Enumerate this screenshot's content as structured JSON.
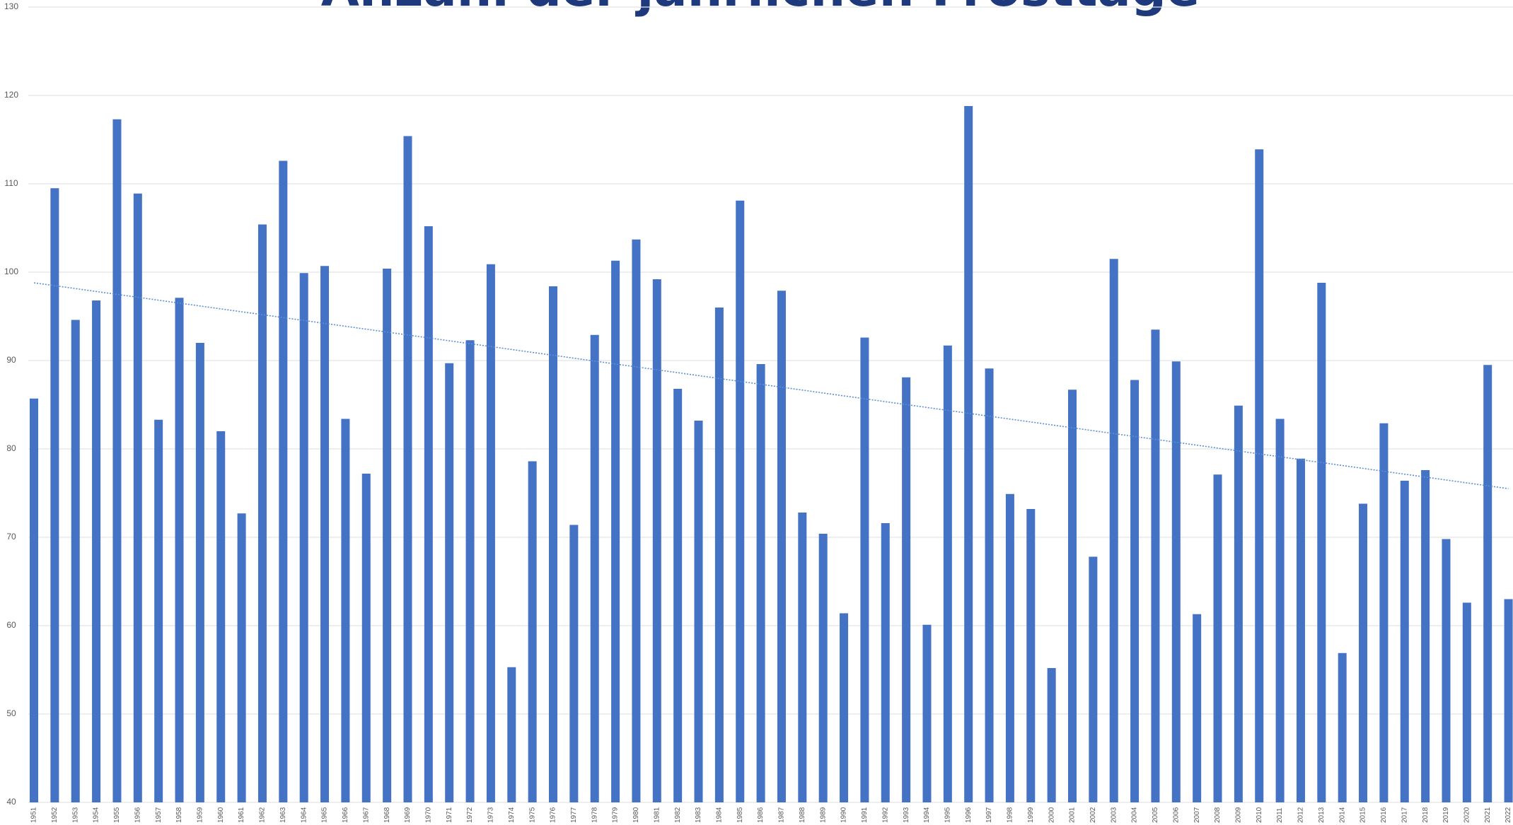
{
  "chart_data": {
    "type": "bar",
    "title": "Anzahl der jährlichen Frosttage",
    "categories": [
      "1951",
      "1952",
      "1953",
      "1954",
      "1955",
      "1956",
      "1957",
      "1958",
      "1959",
      "1960",
      "1961",
      "1962",
      "1963",
      "1964",
      "1965",
      "1966",
      "1967",
      "1968",
      "1969",
      "1970",
      "1971",
      "1972",
      "1973",
      "1974",
      "1975",
      "1976",
      "1977",
      "1978",
      "1979",
      "1980",
      "1981",
      "1982",
      "1983",
      "1984",
      "1985",
      "1986",
      "1987",
      "1988",
      "1989",
      "1990",
      "1991",
      "1992",
      "1993",
      "1994",
      "1995",
      "1996",
      "1997",
      "1998",
      "1999",
      "2000",
      "2001",
      "2002",
      "2003",
      "2004",
      "2005",
      "2006",
      "2007",
      "2008",
      "2009",
      "2010",
      "2011",
      "2012",
      "2013",
      "2014",
      "2015",
      "2016",
      "2017",
      "2018",
      "2019",
      "2020",
      "2021",
      "2022"
    ],
    "values": [
      85.7,
      109.5,
      94.6,
      96.8,
      117.3,
      108.9,
      83.3,
      97.1,
      92.0,
      82.0,
      72.7,
      105.4,
      112.6,
      99.9,
      100.7,
      83.4,
      77.2,
      100.4,
      115.4,
      105.2,
      89.7,
      92.3,
      100.9,
      55.3,
      78.6,
      98.4,
      71.4,
      92.9,
      101.3,
      103.7,
      99.2,
      86.8,
      83.2,
      96.0,
      108.1,
      89.6,
      97.9,
      72.8,
      70.4,
      61.4,
      92.6,
      71.6,
      88.1,
      60.1,
      91.7,
      118.8,
      89.1,
      74.9,
      73.2,
      55.2,
      86.7,
      67.8,
      101.5,
      87.8,
      93.5,
      89.9,
      61.3,
      77.1,
      84.9,
      113.9,
      83.4,
      78.9,
      98.8,
      56.9,
      73.8,
      82.9,
      76.4,
      77.6,
      69.8,
      62.6,
      89.5,
      63.0
    ],
    "color": "#4472c4",
    "trend": [
      98.8,
      75.5
    ],
    "trend_color": "#5b8fd8",
    "ylim": [
      40,
      130
    ],
    "yticks": [
      40,
      50,
      60,
      70,
      80,
      90,
      100,
      110,
      120,
      130
    ],
    "grid": true
  }
}
